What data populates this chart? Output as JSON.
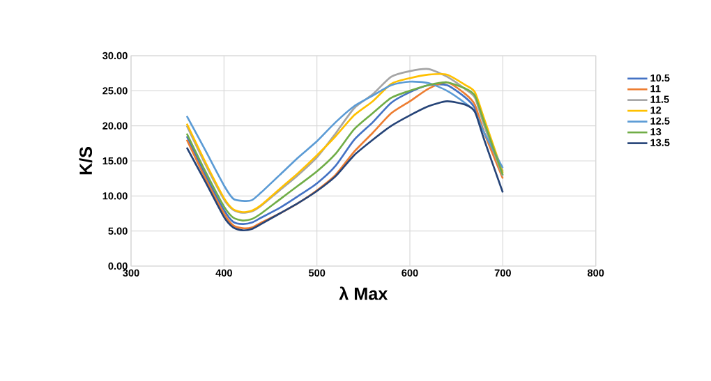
{
  "chart_data": {
    "type": "line",
    "xlabel": "λ Max",
    "ylabel": "K/S",
    "x": [
      360,
      380,
      400,
      410,
      420,
      430,
      440,
      460,
      480,
      500,
      520,
      540,
      560,
      580,
      600,
      620,
      640,
      660,
      670,
      680,
      700
    ],
    "series": [
      {
        "name": "10.5",
        "color": "#4472c4",
        "values": [
          18.5,
          13,
          8,
          6.3,
          6.0,
          6.2,
          6.9,
          8.3,
          10,
          11.8,
          14.3,
          18,
          20.5,
          23.3,
          24.8,
          25.8,
          25.8,
          24,
          22.5,
          19,
          13.5
        ]
      },
      {
        "name": "11",
        "color": "#ed7d31",
        "values": [
          18,
          12.5,
          7.5,
          5.8,
          5.4,
          5.5,
          6.2,
          7.5,
          9,
          10.8,
          13,
          16.3,
          19,
          21.8,
          23.5,
          25.3,
          26.2,
          24.5,
          23,
          19,
          12.5
        ]
      },
      {
        "name": "11.5",
        "color": "#a5a5a5",
        "values": [
          20,
          14.5,
          9.5,
          8,
          7.6,
          7.8,
          8.6,
          10.8,
          13,
          15.5,
          18.9,
          22.5,
          24.5,
          27,
          27.8,
          28.1,
          27,
          25.2,
          24,
          20,
          12.8
        ]
      },
      {
        "name": "12",
        "color": "#ffc000",
        "values": [
          20.3,
          14.8,
          9.7,
          8.1,
          7.7,
          7.9,
          8.7,
          11,
          13.3,
          15.8,
          18.5,
          21.5,
          23.5,
          26,
          26.8,
          27.3,
          27.3,
          25.8,
          24.8,
          21,
          13.3
        ]
      },
      {
        "name": "12.5",
        "color": "#5b9bd5",
        "values": [
          21.4,
          16.5,
          11.5,
          9.6,
          9.3,
          9.4,
          10.5,
          13,
          15.5,
          17.8,
          20.5,
          22.8,
          24.3,
          25.8,
          26.3,
          26.1,
          25,
          23.2,
          22,
          19,
          14
        ]
      },
      {
        "name": "13",
        "color": "#70ad47",
        "values": [
          18.9,
          13.5,
          8.5,
          6.9,
          6.5,
          6.7,
          7.5,
          9.5,
          11.5,
          13.5,
          16,
          19.5,
          21.8,
          24,
          25,
          25.8,
          26.2,
          25.3,
          24.3,
          20.5,
          13
        ]
      },
      {
        "name": "13.5",
        "color": "#264478",
        "values": [
          16.9,
          12,
          7,
          5.5,
          5.1,
          5.3,
          6,
          7.5,
          9,
          10.7,
          12.8,
          15.8,
          18,
          20,
          21.5,
          22.8,
          23.5,
          23,
          22,
          18,
          10.5
        ]
      }
    ],
    "xlim": [
      300,
      800
    ],
    "xticks": [
      300,
      400,
      500,
      600,
      700,
      800
    ],
    "ylim": [
      0,
      30
    ],
    "yticks": [
      {
        "value": 0,
        "label": "0.00"
      },
      {
        "value": 5,
        "label": "5.00"
      },
      {
        "value": 10,
        "label": "10.00"
      },
      {
        "value": 15,
        "label": "15.00"
      },
      {
        "value": 20,
        "label": "20.00"
      },
      {
        "value": 25,
        "label": "25.00"
      },
      {
        "value": 30,
        "label": "30.00"
      }
    ],
    "grid": true,
    "legend": "right",
    "marker": "none",
    "line_style": "solid"
  }
}
